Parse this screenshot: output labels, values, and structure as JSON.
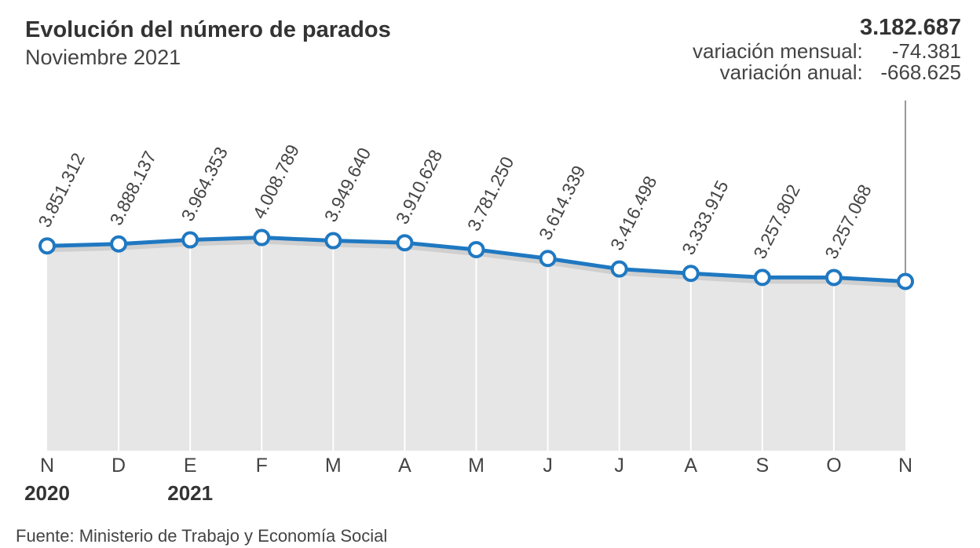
{
  "header": {
    "title": "Evolución del número de parados",
    "subtitle": "Noviembre 2021"
  },
  "summary": {
    "total": "3.182.687",
    "monthly_label": "variación mensual:",
    "monthly_value": "-74.381",
    "annual_label": "variación anual:",
    "annual_value": "-668.625"
  },
  "source": "Fuente: Ministerio de Trabajo y Economía Social",
  "colors": {
    "line": "#1f78c1",
    "area": "#e6e6e6",
    "gridline": "#ffffff",
    "text": "#444444"
  },
  "chart_data": {
    "type": "area",
    "title": "Evolución del número de parados",
    "subtitle": "Noviembre 2021",
    "categories": [
      "N",
      "D",
      "E",
      "F",
      "M",
      "A",
      "M",
      "J",
      "J",
      "A",
      "S",
      "O",
      "N"
    ],
    "year_labels": [
      {
        "index": 0,
        "label": "2020"
      },
      {
        "index": 2,
        "label": "2021"
      }
    ],
    "series": [
      {
        "values": [
          3851312,
          3888137,
          3964353,
          4008789,
          3949640,
          3910628,
          3781250,
          3614339,
          3416498,
          3333915,
          3257802,
          3257068,
          3182687
        ]
      }
    ],
    "data_labels": [
      "3.851.312",
      "3.888.137",
      "3.964.353",
      "4.008.789",
      "3.949.640",
      "3.910.628",
      "3.781.250",
      "3.614.339",
      "3.416.498",
      "3.333.915",
      "3.257.802",
      "3.257.068",
      ""
    ],
    "ylim": [
      0,
      7000000
    ],
    "grid": true,
    "legend": "none"
  }
}
